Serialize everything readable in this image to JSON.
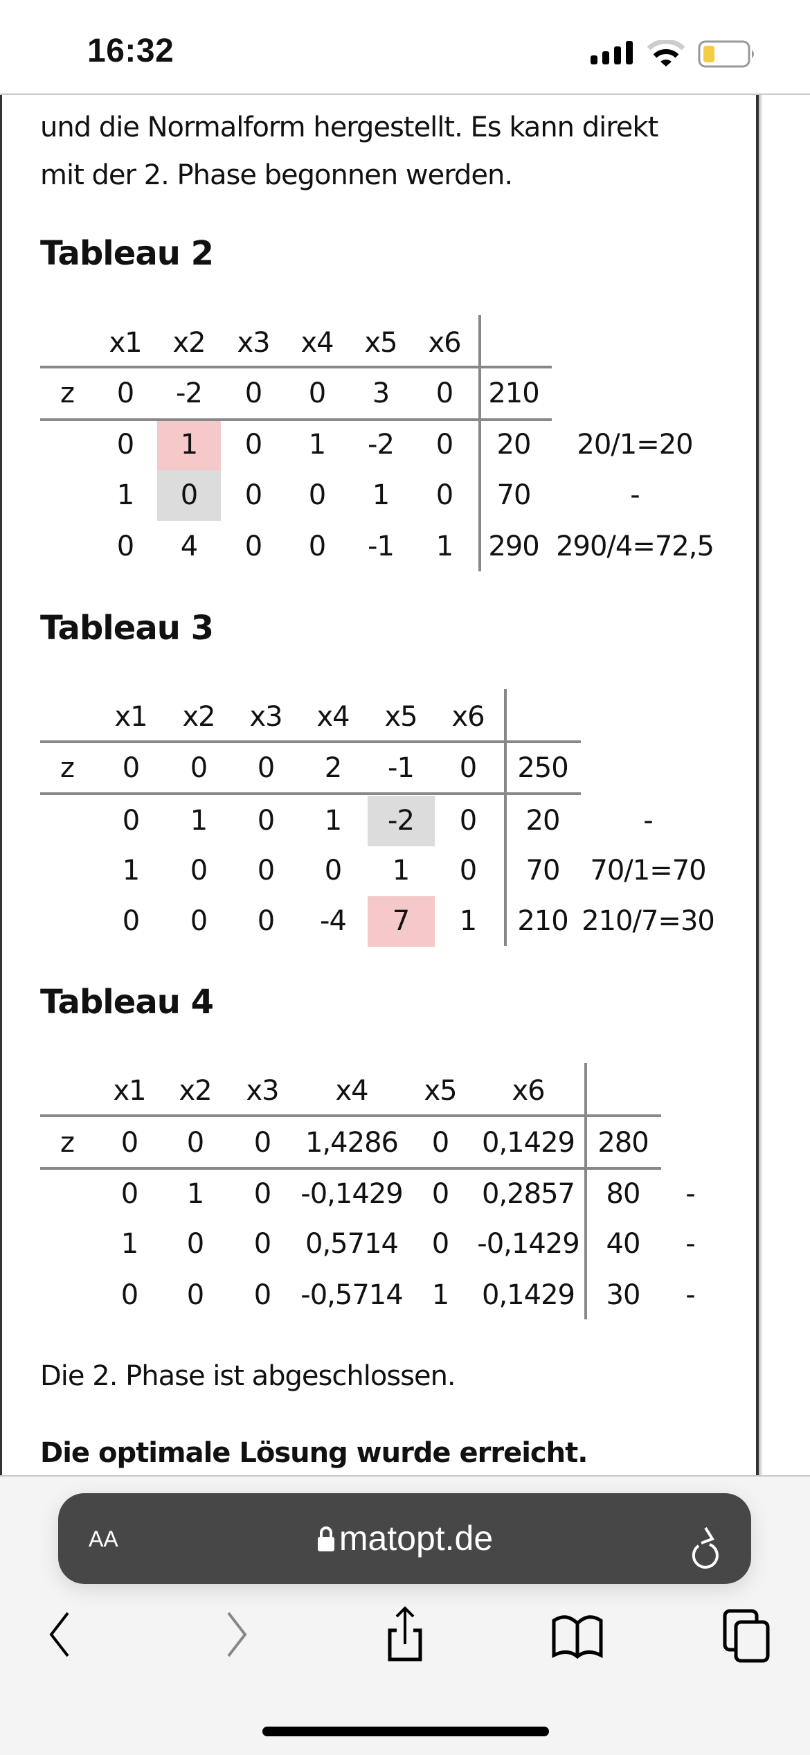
{
  "status_bar": {
    "time": "16:32",
    "battery_color": "#f5cc45"
  },
  "page": {
    "intro_line1": "und die Normalform hergestellt. Es kann direkt",
    "intro_line2": "mit der 2. Phase begonnen werden.",
    "tableaus": [
      {
        "title": "Tableau 2",
        "headers": [
          "x1",
          "x2",
          "x3",
          "x4",
          "x5",
          "x6"
        ],
        "z_row": {
          "label": "z",
          "values": [
            "0",
            "-2",
            "0",
            "0",
            "3",
            "0"
          ],
          "rhs": "210"
        },
        "rows": [
          {
            "values": [
              "0",
              "1",
              "0",
              "1",
              "-2",
              "0"
            ],
            "rhs": "20",
            "ratio": "20/1=20"
          },
          {
            "values": [
              "1",
              "0",
              "0",
              "0",
              "1",
              "0"
            ],
            "rhs": "70",
            "ratio": "-"
          },
          {
            "values": [
              "0",
              "4",
              "0",
              "0",
              "-1",
              "1"
            ],
            "rhs": "290",
            "ratio": "290/4=72,5"
          }
        ],
        "highlights": [
          {
            "row": 0,
            "col": 1,
            "color": "#f5c9c9"
          },
          {
            "row": 1,
            "col": 1,
            "color": "#dcdcdc"
          }
        ]
      },
      {
        "title": "Tableau 3",
        "headers": [
          "x1",
          "x2",
          "x3",
          "x4",
          "x5",
          "x6"
        ],
        "z_row": {
          "label": "z",
          "values": [
            "0",
            "0",
            "0",
            "2",
            "-1",
            "0"
          ],
          "rhs": "250"
        },
        "rows": [
          {
            "values": [
              "0",
              "1",
              "0",
              "1",
              "-2",
              "0"
            ],
            "rhs": "20",
            "ratio": "-"
          },
          {
            "values": [
              "1",
              "0",
              "0",
              "0",
              "1",
              "0"
            ],
            "rhs": "70",
            "ratio": "70/1=70"
          },
          {
            "values": [
              "0",
              "0",
              "0",
              "-4",
              "7",
              "1"
            ],
            "rhs": "210",
            "ratio": "210/7=30"
          }
        ],
        "highlights": [
          {
            "row": 0,
            "col": 4,
            "color": "#dcdcdc"
          },
          {
            "row": 2,
            "col": 4,
            "color": "#f5c9c9"
          }
        ]
      },
      {
        "title": "Tableau 4",
        "headers": [
          "x1",
          "x2",
          "x3",
          "x4",
          "x5",
          "x6"
        ],
        "z_row": {
          "label": "z",
          "values": [
            "0",
            "0",
            "0",
            "1,4286",
            "0",
            "0,1429"
          ],
          "rhs": "280"
        },
        "rows": [
          {
            "values": [
              "0",
              "1",
              "0",
              "-0,1429",
              "0",
              "0,2857"
            ],
            "rhs": "80",
            "ratio": "-"
          },
          {
            "values": [
              "1",
              "0",
              "0",
              "0,5714",
              "0",
              "-0,1429"
            ],
            "rhs": "40",
            "ratio": "-"
          },
          {
            "values": [
              "0",
              "0",
              "0",
              "-0,5714",
              "1",
              "0,1429"
            ],
            "rhs": "30",
            "ratio": "-"
          }
        ],
        "highlights": []
      }
    ],
    "phase_done": "Die 2. Phase ist abgeschlossen.",
    "optimal": "Die optimale Lösung wurde erreicht."
  },
  "browser": {
    "text_size_label": "AA",
    "url": "matopt.de",
    "icons": [
      "lock-icon",
      "reload-icon",
      "back-icon",
      "forward-icon",
      "share-icon",
      "bookmarks-icon",
      "tabs-icon"
    ]
  }
}
